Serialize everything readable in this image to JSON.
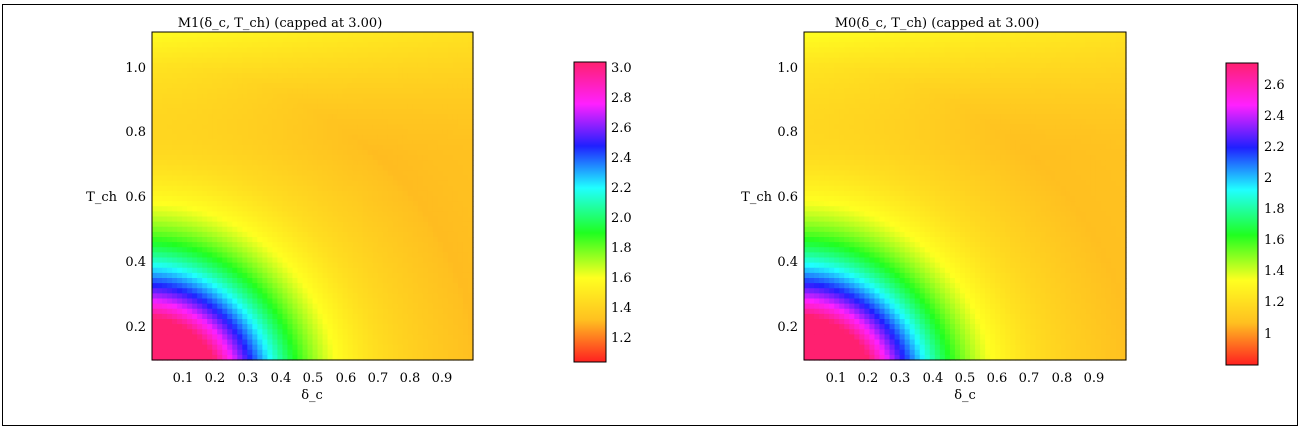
{
  "chart_data": [
    {
      "type": "heatmap",
      "title": "M1(δ_c, T_ch)  (capped at 3.00)",
      "xlabel": "δ_c",
      "ylabel": "T_ch",
      "xlim": [
        0.02,
        0.98
      ],
      "ylim": [
        0.1,
        1.1
      ],
      "x_ticks": [
        "0.1",
        "0.2",
        "0.3",
        "0.4",
        "0.5",
        "0.6",
        "0.7",
        "0.8",
        "0.9"
      ],
      "y_ticks": [
        "0.2",
        "0.4",
        "0.6",
        "0.8",
        "1.0"
      ],
      "colorbar": {
        "range": [
          1.05,
          3.05
        ],
        "ticks": [
          "1.2",
          "1.4",
          "1.6",
          "1.8",
          "2.0",
          "2.2",
          "2.4",
          "2.6",
          "2.8",
          "3.0"
        ],
        "colors": [
          "#ff2020",
          "#ffc020",
          "#ffff20",
          "#20ff20",
          "#20ffff",
          "#2020ff",
          "#ff20ff",
          "#ff2070"
        ]
      }
    },
    {
      "type": "heatmap",
      "title": "M0(δ_c, T_ch)  (capped at 3.00)",
      "xlabel": "δ_c",
      "ylabel": "T_ch",
      "xlim": [
        0.02,
        0.98
      ],
      "ylim": [
        0.1,
        1.1
      ],
      "x_ticks": [
        "0.1",
        "0.2",
        "0.3",
        "0.4",
        "0.5",
        "0.6",
        "0.7",
        "0.8",
        "0.9"
      ],
      "y_ticks": [
        "0.2",
        "0.4",
        "0.6",
        "0.8",
        "1.0"
      ],
      "colorbar": {
        "range": [
          0.8,
          2.75
        ],
        "ticks": [
          "1",
          "1.2",
          "1.4",
          "1.6",
          "1.8",
          "2",
          "2.2",
          "2.4",
          "2.6"
        ],
        "colors": [
          "#ff2020",
          "#ffc020",
          "#ffff20",
          "#20ff20",
          "#20ffff",
          "#2020ff",
          "#ff20ff",
          "#ff2070"
        ]
      }
    }
  ]
}
